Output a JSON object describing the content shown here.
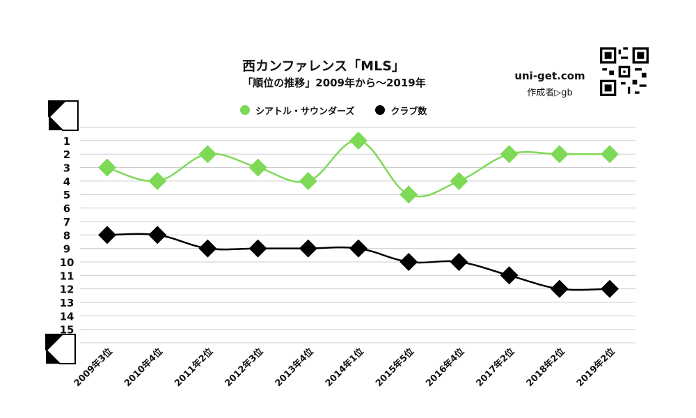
{
  "header": {
    "title": "西カンファレンス「MLS」",
    "subtitle": "「順位の推移」2009年から～2019年",
    "site": "uni-get.com",
    "author": "作成者▷gb"
  },
  "colors": {
    "seattle": "#7ed957",
    "clubs": "#000000",
    "grid": "#cccccc"
  },
  "icons": {
    "corner_top": "page-curl-icon",
    "corner_bottom": "page-curl-icon",
    "qr": "qr-code-icon"
  },
  "chart_data": {
    "type": "line",
    "title": "西カンファレンス「MLS」",
    "subtitle": "「順位の推移」2009年から～2019年",
    "categories": [
      "2009年3位",
      "2010年4位",
      "2011年2位",
      "2012年3位",
      "2013年4位",
      "2014年1位",
      "2015年5位",
      "2016年4位",
      "2017年2位",
      "2018年2位",
      "2019年2位"
    ],
    "y_ticks": [
      "1",
      "2",
      "3",
      "4",
      "5",
      "6",
      "7",
      "8",
      "9",
      "10",
      "11",
      "12",
      "13",
      "14",
      "15"
    ],
    "ylim": [
      0,
      16
    ],
    "y_inverted": true,
    "grid": true,
    "legend_position": "top-center",
    "series": [
      {
        "name": "シアトル・サウンダーズ",
        "color": "#7ed957",
        "values": [
          3,
          4,
          2,
          3,
          4,
          1,
          5,
          4,
          2,
          2,
          2
        ]
      },
      {
        "name": "クラブ数",
        "color": "#000000",
        "values": [
          8,
          8,
          9,
          9,
          9,
          9,
          10,
          10,
          11,
          12,
          12
        ]
      }
    ]
  }
}
